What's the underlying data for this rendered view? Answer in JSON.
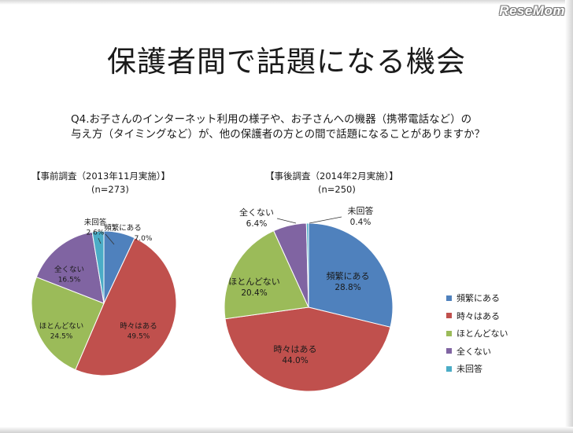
{
  "watermark": "ReseMom",
  "title": "保護者間で話題になる機会",
  "question": {
    "line1": "Q4.お子さんのインターネット利用の様子や、お子さんへの機器（携帯電話など）の",
    "line2": "与え方（タイミングなど）が、他の保護者の方との間で話題になることがありますか？"
  },
  "colors": {
    "頻繁にある": "#4f81bd",
    "時々はある": "#c0504d",
    "ほとんどない": "#9bbb59",
    "全くない": "#8064a2",
    "未回答": "#4bacc6"
  },
  "chart_data": [
    {
      "type": "pie",
      "title": "【事前調査（2013年11月実施）】",
      "subtitle": "(n=273)",
      "slices": [
        {
          "label": "頻繁にある",
          "value": 7.0,
          "display": "7.0%"
        },
        {
          "label": "時々はある",
          "value": 49.5,
          "display": "49.5%"
        },
        {
          "label": "ほとんどない",
          "value": 24.5,
          "display": "24.5%"
        },
        {
          "label": "全くない",
          "value": 16.5,
          "display": "16.5%"
        },
        {
          "label": "未回答",
          "value": 2.6,
          "display": "2.6%"
        }
      ]
    },
    {
      "type": "pie",
      "title": "【事後調査（2014年2月実施）】",
      "subtitle": "(n=250)",
      "slices": [
        {
          "label": "頻繁にある",
          "value": 28.8,
          "display": "28.8%"
        },
        {
          "label": "時々はある",
          "value": 44.0,
          "display": "44.0%"
        },
        {
          "label": "ほとんどない",
          "value": 20.4,
          "display": "20.4%"
        },
        {
          "label": "全くない",
          "value": 6.4,
          "display": "6.4%"
        },
        {
          "label": "未回答",
          "value": 0.4,
          "display": "0.4%"
        }
      ]
    }
  ],
  "legend": [
    "頻繁にある",
    "時々はある",
    "ほとんどない",
    "全くない",
    "未回答"
  ]
}
